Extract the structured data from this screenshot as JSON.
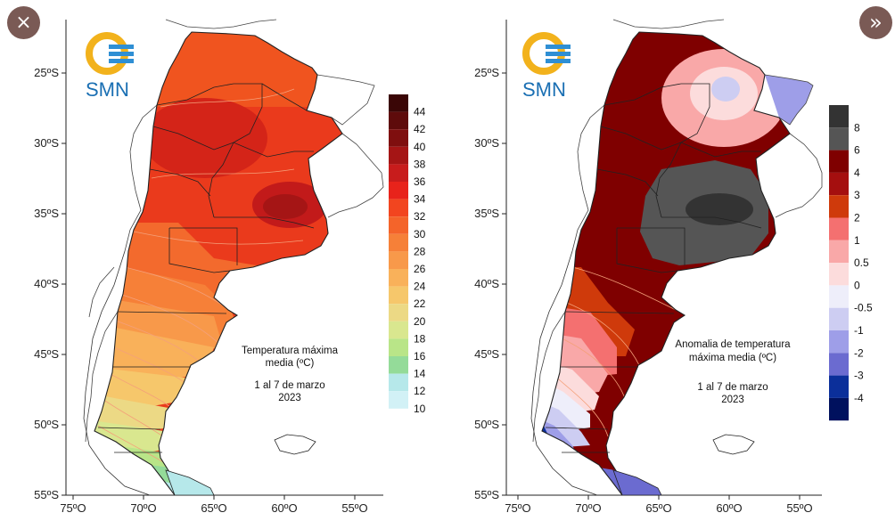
{
  "controls": {
    "close_icon": "×",
    "next_icon": "»"
  },
  "brand": {
    "logo_text": "SMN"
  },
  "axes": {
    "lat_labels": [
      "25ºS",
      "30ºS",
      "35ºS",
      "40ºS",
      "45ºS",
      "50ºS",
      "55ºS"
    ],
    "lon_labels": [
      "75ºO",
      "70ºO",
      "65ºO",
      "60ºO",
      "55ºO"
    ],
    "lat_values": [
      -25,
      -30,
      -35,
      -40,
      -45,
      -50,
      -55
    ],
    "lon_values": [
      -75,
      -70,
      -65,
      -60,
      -55
    ]
  },
  "maps": [
    {
      "id": "max-temp",
      "annotation": [
        "Temperatura máxima",
        "media (ºC)",
        "",
        "1 al 7 de marzo",
        "2023"
      ],
      "legend": {
        "labels": [
          "44",
          "42",
          "40",
          "38",
          "36",
          "34",
          "32",
          "30",
          "28",
          "26",
          "24",
          "22",
          "20",
          "18",
          "16",
          "14",
          "12",
          "10"
        ],
        "colors": [
          "#3a0606",
          "#5e0b0b",
          "#7f0f0f",
          "#a51515",
          "#c81c1c",
          "#e8231b",
          "#f2451f",
          "#f4642a",
          "#f68038",
          "#f8994a",
          "#f9b15a",
          "#f6c76b",
          "#ecd985",
          "#d9e78f",
          "#b9e588",
          "#94db99",
          "#b6e8ea",
          "#d2f1f6"
        ]
      }
    },
    {
      "id": "max-temp-anomaly",
      "annotation": [
        "Anomalia de temperatura",
        "máxima media (ºC)",
        "",
        "1 al 7 de marzo",
        "2023"
      ],
      "legend": {
        "labels": [
          "8",
          "6",
          "4",
          "3",
          "2",
          "1",
          "0.5",
          "0",
          "-0.5",
          "-1",
          "-2",
          "-3",
          "-4"
        ],
        "colors": [
          "#333333",
          "#555555",
          "#7f0000",
          "#a50f0f",
          "#cf3a0b",
          "#f47070",
          "#f9a8a8",
          "#fcdcdc",
          "#eeeefa",
          "#cdcdf2",
          "#9e9ee8",
          "#6b6bd0",
          "#0b2f9a",
          "#00115e"
        ]
      }
    }
  ]
}
